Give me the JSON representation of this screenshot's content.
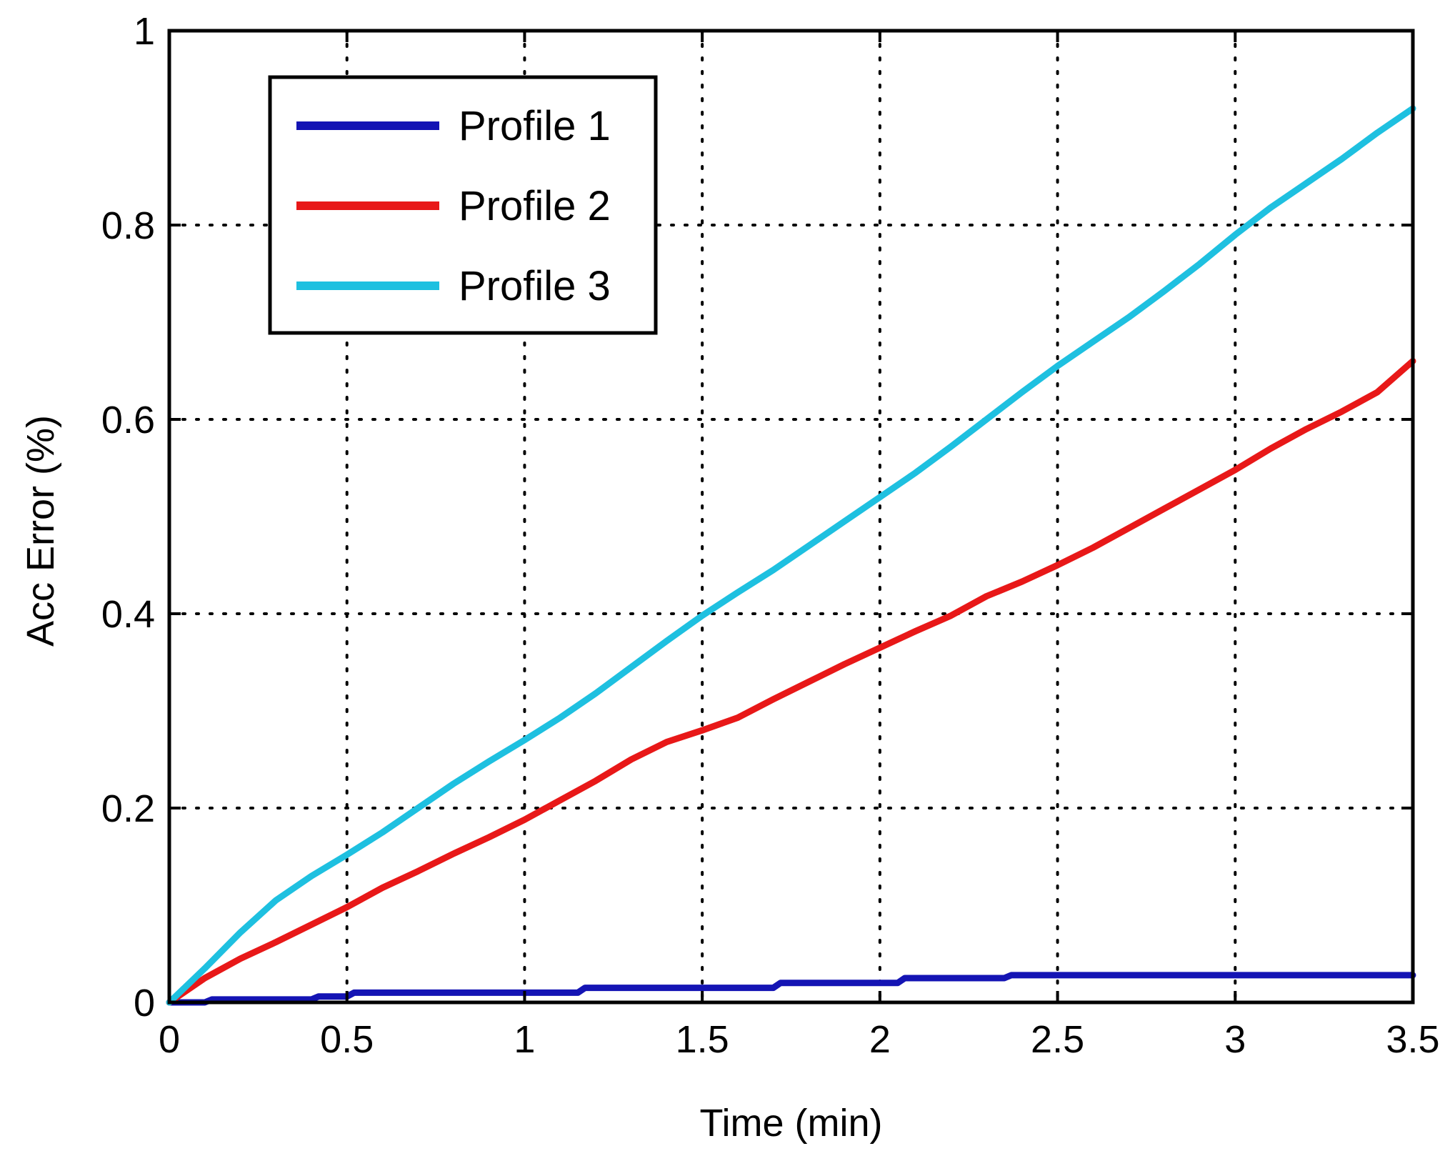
{
  "chart_data": {
    "type": "line",
    "xlabel": "Time (min)",
    "ylabel": "Acc Error (%)",
    "xlim": [
      0,
      3.5
    ],
    "ylim": [
      0,
      1
    ],
    "xticks": [
      "0",
      "0.5",
      "1",
      "1.5",
      "2",
      "2.5",
      "3",
      "3.5"
    ],
    "yticks": [
      "0",
      "0.2",
      "0.4",
      "0.6",
      "0.8",
      "1"
    ],
    "grid": true,
    "legend_position": "top-left",
    "series": [
      {
        "name": "Profile 1",
        "color": "#1414b4",
        "x": [
          0,
          0.1,
          0.12,
          0.4,
          0.42,
          0.5,
          0.52,
          1.15,
          1.17,
          1.7,
          1.72,
          2.05,
          2.07,
          2.35,
          2.37,
          3.5
        ],
        "y": [
          0,
          0,
          0.003,
          0.003,
          0.006,
          0.006,
          0.01,
          0.01,
          0.015,
          0.015,
          0.02,
          0.02,
          0.025,
          0.025,
          0.028,
          0.028
        ]
      },
      {
        "name": "Profile 2",
        "color": "#e81818",
        "x": [
          0,
          0.1,
          0.2,
          0.3,
          0.4,
          0.5,
          0.6,
          0.7,
          0.8,
          0.9,
          1.0,
          1.1,
          1.2,
          1.3,
          1.4,
          1.5,
          1.6,
          1.7,
          1.8,
          1.9,
          2.0,
          2.1,
          2.2,
          2.3,
          2.4,
          2.5,
          2.6,
          2.7,
          2.8,
          2.9,
          3.0,
          3.1,
          3.2,
          3.3,
          3.4,
          3.5
        ],
        "y": [
          0,
          0.025,
          0.045,
          0.062,
          0.08,
          0.098,
          0.118,
          0.135,
          0.153,
          0.17,
          0.188,
          0.208,
          0.228,
          0.25,
          0.268,
          0.28,
          0.293,
          0.312,
          0.33,
          0.348,
          0.365,
          0.382,
          0.398,
          0.418,
          0.433,
          0.45,
          0.468,
          0.488,
          0.508,
          0.528,
          0.548,
          0.57,
          0.59,
          0.608,
          0.628,
          0.66
        ]
      },
      {
        "name": "Profile 3",
        "color": "#1ec0e0",
        "x": [
          0,
          0.1,
          0.2,
          0.3,
          0.4,
          0.5,
          0.6,
          0.7,
          0.8,
          0.9,
          1.0,
          1.1,
          1.2,
          1.3,
          1.4,
          1.5,
          1.6,
          1.7,
          1.8,
          1.9,
          2.0,
          2.1,
          2.2,
          2.3,
          2.4,
          2.5,
          2.6,
          2.7,
          2.8,
          2.9,
          3.0,
          3.1,
          3.2,
          3.3,
          3.4,
          3.5
        ],
        "y": [
          0,
          0.035,
          0.072,
          0.105,
          0.13,
          0.152,
          0.175,
          0.2,
          0.225,
          0.248,
          0.27,
          0.293,
          0.318,
          0.345,
          0.372,
          0.398,
          0.422,
          0.445,
          0.47,
          0.495,
          0.52,
          0.545,
          0.572,
          0.6,
          0.628,
          0.655,
          0.68,
          0.705,
          0.732,
          0.76,
          0.79,
          0.818,
          0.843,
          0.868,
          0.895,
          0.92
        ]
      }
    ]
  }
}
